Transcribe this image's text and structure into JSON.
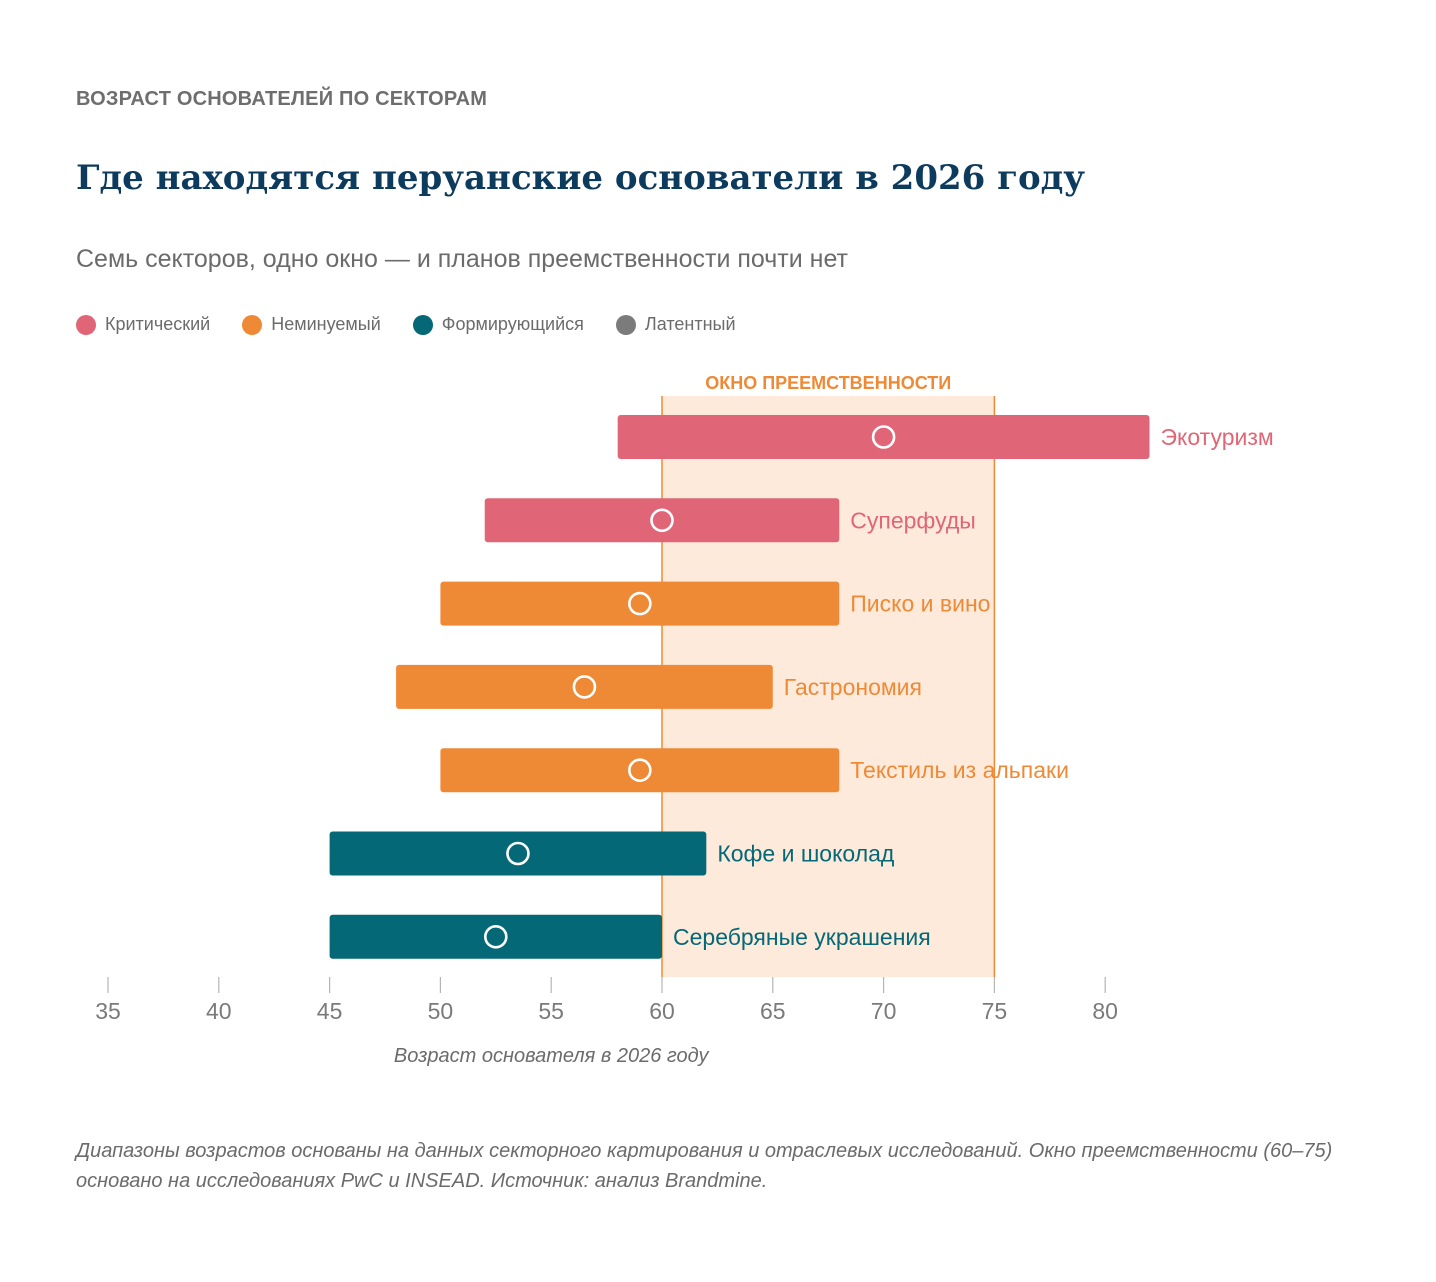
{
  "header": {
    "eyebrow": "ВОЗРАСТ ОСНОВАТЕЛЕЙ ПО СЕКТОРАМ",
    "title": "Где находятся перуанские основатели в 2026 году",
    "subtitle": "Семь секторов, одно окно — и планов преемственности почти нет"
  },
  "legend": [
    {
      "label": "Критический",
      "color": "#e06677"
    },
    {
      "label": "Неминуемый",
      "color": "#ee8a36"
    },
    {
      "label": "Формирующийся",
      "color": "#046877"
    },
    {
      "label": "Латентный",
      "color": "#7b7b7b"
    }
  ],
  "chart_data": {
    "type": "range-bar",
    "xlabel": "Возраст основателя в 2026 году",
    "xlim": [
      35,
      80
    ],
    "xticks": [
      "35",
      "40",
      "45",
      "50",
      "55",
      "60",
      "65",
      "70",
      "75",
      "80"
    ],
    "window": {
      "label": "ОКНО ПРЕЕМСТВЕННОСТИ",
      "start": 60,
      "end": 75,
      "color": "#ee8a36",
      "fill": "#fdeadb"
    },
    "series": [
      {
        "sector": "Экотуризм",
        "status": "Критический",
        "min": 58,
        "max": 82,
        "median": 70,
        "color": "#e06677"
      },
      {
        "sector": "Суперфуды",
        "status": "Критический",
        "min": 52,
        "max": 68,
        "median": 60,
        "color": "#e06677"
      },
      {
        "sector": "Писко и вино",
        "status": "Неминуемый",
        "min": 50,
        "max": 68,
        "median": 59,
        "color": "#ee8a36"
      },
      {
        "sector": "Гастрономия",
        "status": "Неминуемый",
        "min": 48,
        "max": 65,
        "median": 56.5,
        "color": "#ee8a36"
      },
      {
        "sector": "Текстиль из альпаки",
        "status": "Неминуемый",
        "min": 50,
        "max": 68,
        "median": 59,
        "color": "#ee8a36"
      },
      {
        "sector": "Кофе и шоколад",
        "status": "Формирующийся",
        "min": 45,
        "max": 62,
        "median": 53.5,
        "color": "#046877"
      },
      {
        "sector": "Серебряные украшения",
        "status": "Формирующийся",
        "min": 45,
        "max": 60,
        "median": 52.5,
        "color": "#046877"
      }
    ]
  },
  "footnote": "Диапазоны возрастов основаны на данных секторного картирования и отраслевых исследований. Окно преемственности (60–75) основано на исследованиях PwC и INSEAD. Источник: анализ Brandmine."
}
